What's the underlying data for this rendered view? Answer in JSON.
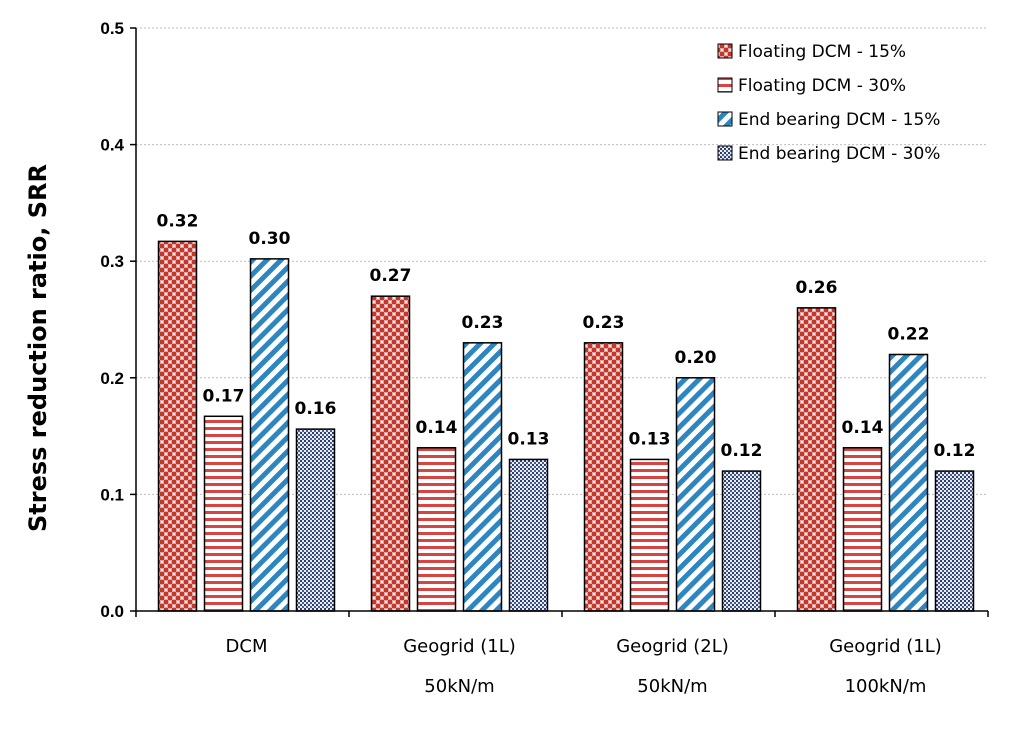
{
  "chart_data": {
    "type": "bar",
    "ylabel": "Stress reduction ratio, SRR",
    "xlabel": "",
    "ylim": [
      0,
      0.5
    ],
    "yticks": [
      "0.0",
      "0.1",
      "0.2",
      "0.3",
      "0.4",
      "0.5"
    ],
    "grid": "horizontal dashed",
    "legend_position": "top-right",
    "categories": [
      [
        "DCM",
        ""
      ],
      [
        "Geogrid (1L)",
        "50kN/m"
      ],
      [
        "Geogrid (2L)",
        "50kN/m"
      ],
      [
        "Geogrid (1L)",
        "100kN/m"
      ]
    ],
    "series": [
      {
        "name": "Floating DCM - 15%",
        "values": [
          0.317,
          0.27,
          0.23,
          0.26
        ],
        "labels": [
          "0.32",
          "0.27",
          "0.23",
          "0.26"
        ],
        "color": "#c0392b",
        "pattern": "checker-red"
      },
      {
        "name": "Floating DCM - 30%",
        "values": [
          0.167,
          0.14,
          0.13,
          0.14
        ],
        "labels": [
          "0.17",
          "0.14",
          "0.13",
          "0.14"
        ],
        "color": "#c0392b",
        "pattern": "horizontal-stripes-red"
      },
      {
        "name": "End bearing DCM - 15%",
        "values": [
          0.302,
          0.23,
          0.2,
          0.22
        ],
        "labels": [
          "0.30",
          "0.23",
          "0.20",
          "0.22"
        ],
        "color": "#2e86c1",
        "pattern": "diagonal-stripes-blue"
      },
      {
        "name": "End bearing DCM - 30%",
        "values": [
          0.156,
          0.13,
          0.12,
          0.12
        ],
        "labels": [
          "0.16",
          "0.13",
          "0.12",
          "0.12"
        ],
        "color": "#2c3e6b",
        "pattern": "dense-dots-navy"
      }
    ]
  }
}
